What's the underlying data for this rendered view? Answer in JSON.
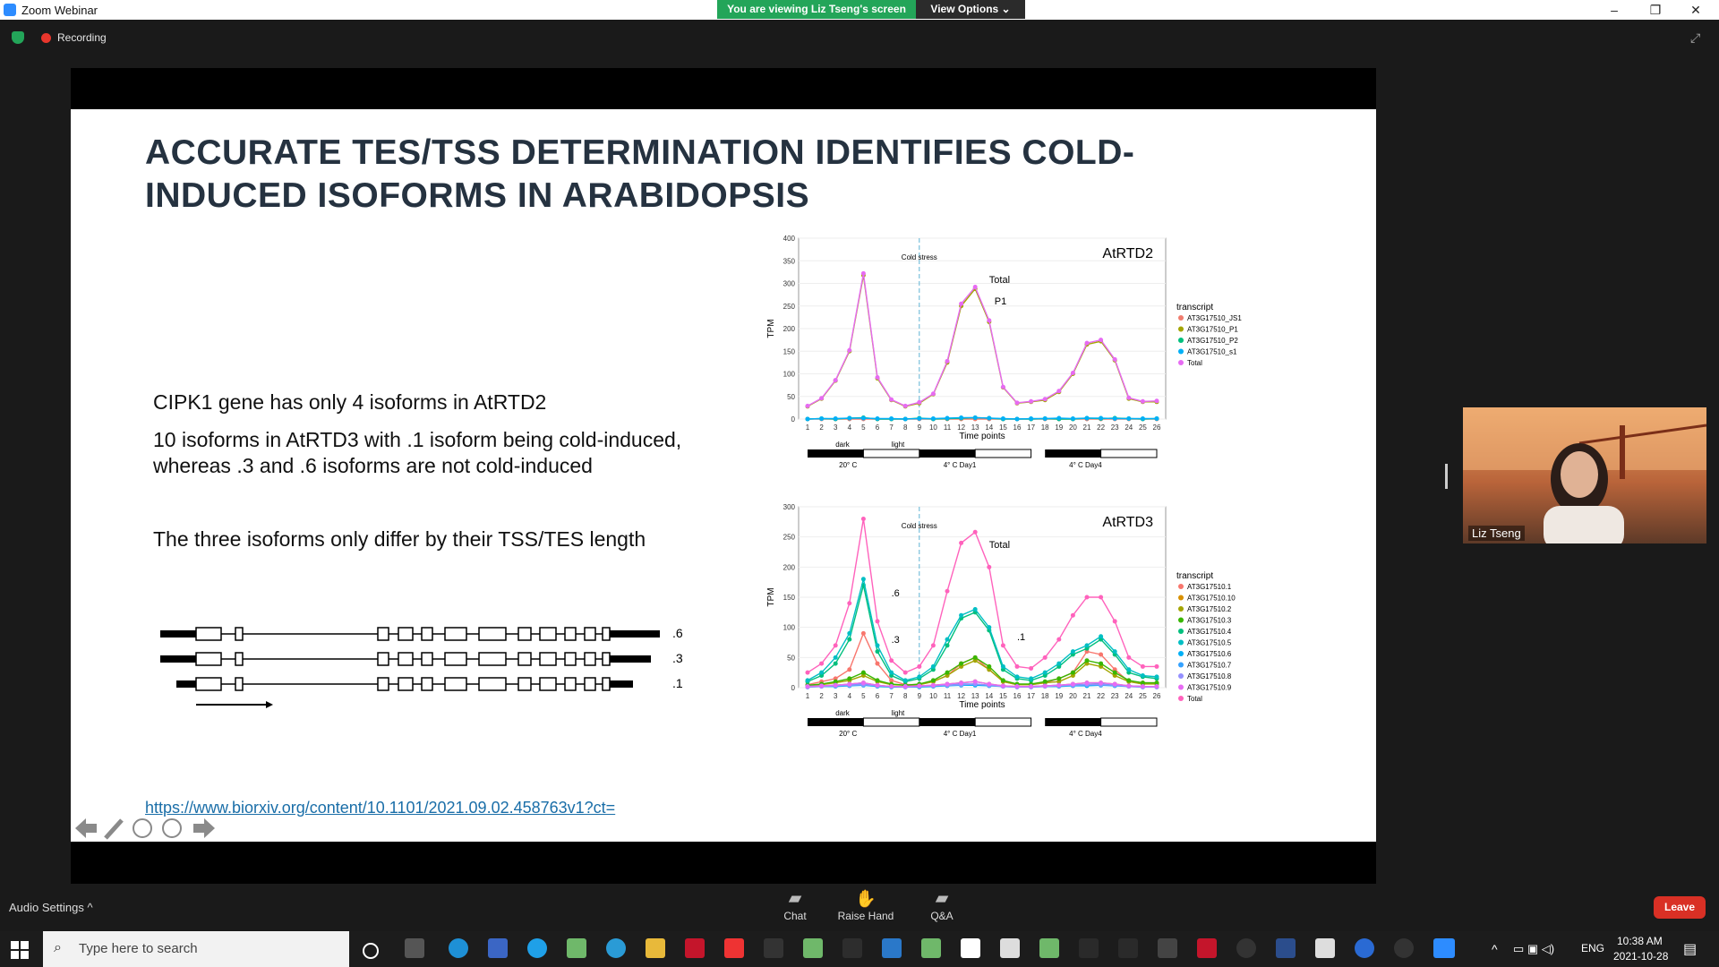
{
  "app": {
    "title": "Zoom Webinar",
    "viewing_banner": "You are viewing Liz Tseng's screen",
    "view_options": "View Options ⌄"
  },
  "window_controls": {
    "minimize": "–",
    "restore": "❐",
    "close": "✕"
  },
  "status": {
    "recording": "Recording"
  },
  "slide": {
    "title_line1": "ACCURATE TES/TSS DETERMINATION IDENTIFIES COLD-",
    "title_line2": "INDUCED ISOFORMS IN ARABIDOPSIS",
    "bullet1": "CIPK1 gene has only 4 isoforms in AtRTD2",
    "bullet2_line1": "10 isoforms in AtRTD3 with .1 isoform being cold-induced,",
    "bullet2_line2": "whereas .3 and .6 isoforms are not cold-induced",
    "bullet3": "The three isoforms only differ by their TSS/TES length",
    "isoform_labels": [
      ".6",
      ".3",
      ".1"
    ],
    "link": "https://www.biorxiv.org/content/10.1101/2021.09.02.458763v1?ct="
  },
  "chart_data": [
    {
      "type": "line",
      "title": "AtRTD2",
      "annotations": [
        "Cold stress",
        "Total",
        "P1"
      ],
      "xlabel": "Time points",
      "ylabel": "TPM",
      "x": [
        1,
        2,
        3,
        4,
        5,
        6,
        7,
        8,
        9,
        10,
        11,
        12,
        13,
        14,
        15,
        16,
        17,
        18,
        19,
        20,
        21,
        22,
        23,
        24,
        25,
        26
      ],
      "ylim": [
        0,
        400
      ],
      "yticks": [
        0,
        50,
        100,
        150,
        200,
        250,
        300,
        350,
        400
      ],
      "legend_title": "transcript",
      "legend_position": "right",
      "series": [
        {
          "name": "AT3G17510_JS1",
          "color": "#f07c6e",
          "values": [
            0,
            0,
            0,
            0,
            0,
            0,
            0,
            0,
            0,
            0,
            0,
            0,
            0,
            0,
            0,
            0,
            0,
            0,
            0,
            0,
            0,
            0,
            0,
            0,
            0,
            0
          ]
        },
        {
          "name": "AT3G17510_P1",
          "color": "#a3a500",
          "values": [
            28,
            45,
            85,
            150,
            318,
            90,
            42,
            28,
            35,
            55,
            125,
            250,
            288,
            215,
            70,
            35,
            38,
            42,
            60,
            100,
            165,
            172,
            130,
            45,
            38,
            38
          ]
        },
        {
          "name": "AT3G17510_P2",
          "color": "#00bf7d",
          "values": [
            0,
            1,
            0,
            2,
            3,
            0,
            0,
            0,
            2,
            0,
            1,
            2,
            3,
            2,
            0,
            0,
            0,
            1,
            0,
            0,
            2,
            1,
            2,
            1,
            0,
            1
          ]
        },
        {
          "name": "AT3G17510_s1",
          "color": "#00b0f6",
          "values": [
            0,
            1,
            1,
            2,
            2,
            1,
            1,
            0,
            1,
            1,
            2,
            3,
            3,
            2,
            1,
            0,
            1,
            1,
            2,
            1,
            2,
            2,
            1,
            1,
            1,
            1
          ]
        },
        {
          "name": "Total",
          "color": "#e76bf3",
          "values": [
            29,
            46,
            86,
            152,
            322,
            92,
            43,
            29,
            37,
            56,
            128,
            255,
            292,
            218,
            71,
            36,
            39,
            44,
            62,
            102,
            168,
            175,
            132,
            47,
            39,
            40
          ]
        }
      ],
      "bands": {
        "segments": [
          "dark",
          "light"
        ],
        "conditions": [
          "20° C",
          "4° C Day1",
          "4° C Day4"
        ]
      }
    },
    {
      "type": "line",
      "title": "AtRTD3",
      "annotations": [
        "Cold stress",
        "Total",
        ".6",
        ".3",
        ".1"
      ],
      "xlabel": "Time points",
      "ylabel": "TPM",
      "x": [
        1,
        2,
        3,
        4,
        5,
        6,
        7,
        8,
        9,
        10,
        11,
        12,
        13,
        14,
        15,
        16,
        17,
        18,
        19,
        20,
        21,
        22,
        23,
        24,
        25,
        26
      ],
      "ylim": [
        0,
        300
      ],
      "yticks": [
        0,
        50,
        100,
        150,
        200,
        250,
        300
      ],
      "legend_title": "transcript",
      "legend_position": "right",
      "series": [
        {
          "name": "AT3G17510.1",
          "color": "#f8766d",
          "values": [
            5,
            10,
            15,
            30,
            90,
            40,
            12,
            5,
            5,
            10,
            20,
            40,
            50,
            30,
            10,
            5,
            5,
            8,
            15,
            25,
            60,
            55,
            30,
            10,
            8,
            8
          ]
        },
        {
          "name": "AT3G17510.10",
          "color": "#d89000",
          "values": [
            2,
            3,
            4,
            6,
            8,
            4,
            2,
            2,
            3,
            4,
            6,
            8,
            10,
            6,
            3,
            2,
            2,
            3,
            4,
            6,
            8,
            8,
            6,
            3,
            2,
            2
          ]
        },
        {
          "name": "AT3G17510.2",
          "color": "#a3a500",
          "values": [
            3,
            5,
            8,
            12,
            20,
            10,
            5,
            4,
            5,
            10,
            20,
            35,
            45,
            30,
            10,
            5,
            5,
            8,
            10,
            20,
            40,
            35,
            20,
            10,
            6,
            6
          ]
        },
        {
          "name": "AT3G17510.3",
          "color": "#39b600",
          "values": [
            4,
            6,
            10,
            15,
            25,
            12,
            6,
            4,
            6,
            12,
            25,
            40,
            50,
            35,
            12,
            6,
            6,
            10,
            15,
            25,
            45,
            40,
            25,
            12,
            8,
            8
          ]
        },
        {
          "name": "AT3G17510.4",
          "color": "#00bf7d",
          "values": [
            10,
            20,
            40,
            80,
            170,
            60,
            20,
            10,
            15,
            30,
            70,
            115,
            125,
            95,
            30,
            15,
            12,
            20,
            35,
            55,
            65,
            80,
            55,
            25,
            18,
            15
          ]
        },
        {
          "name": "AT3G17510.5",
          "color": "#00bfc4",
          "values": [
            12,
            25,
            50,
            90,
            180,
            70,
            25,
            12,
            18,
            35,
            80,
            120,
            130,
            100,
            35,
            18,
            15,
            25,
            40,
            60,
            70,
            85,
            60,
            30,
            20,
            18
          ]
        },
        {
          "name": "AT3G17510.6",
          "color": "#00b0f6",
          "values": [
            1,
            2,
            2,
            3,
            4,
            2,
            1,
            1,
            1,
            2,
            3,
            4,
            4,
            3,
            2,
            1,
            1,
            2,
            2,
            3,
            3,
            4,
            3,
            2,
            1,
            1
          ]
        },
        {
          "name": "AT3G17510.7",
          "color": "#35a2ff",
          "values": [
            2,
            3,
            4,
            5,
            6,
            3,
            2,
            2,
            2,
            3,
            4,
            6,
            6,
            4,
            2,
            2,
            2,
            3,
            4,
            5,
            5,
            6,
            4,
            3,
            2,
            2
          ]
        },
        {
          "name": "AT3G17510.8",
          "color": "#9590ff",
          "values": [
            1,
            2,
            3,
            4,
            5,
            3,
            2,
            1,
            2,
            3,
            4,
            5,
            6,
            4,
            2,
            1,
            1,
            2,
            3,
            4,
            5,
            5,
            4,
            2,
            1,
            1
          ]
        },
        {
          "name": "AT3G17510.9",
          "color": "#e76bf3",
          "values": [
            2,
            3,
            4,
            6,
            8,
            4,
            2,
            2,
            3,
            4,
            6,
            8,
            10,
            6,
            3,
            2,
            2,
            3,
            4,
            6,
            8,
            8,
            6,
            3,
            2,
            2
          ]
        },
        {
          "name": "Total",
          "color": "#ff62bc",
          "values": [
            25,
            40,
            70,
            140,
            280,
            110,
            45,
            25,
            35,
            70,
            160,
            240,
            258,
            200,
            70,
            35,
            32,
            50,
            80,
            120,
            150,
            150,
            110,
            50,
            35,
            35
          ]
        }
      ],
      "bands": {
        "segments": [
          "dark",
          "light"
        ],
        "conditions": [
          "20° C",
          "4° C Day1",
          "4° C Day4"
        ]
      }
    }
  ],
  "presenter": {
    "name": "Liz Tseng"
  },
  "bottom": {
    "audio_settings": "Audio Settings ^",
    "chat": "Chat",
    "raise_hand": "Raise Hand",
    "qa": "Q&A",
    "leave": "Leave"
  },
  "taskbar": {
    "search_placeholder": "Type here to search",
    "time": "10:38 AM",
    "date": "2021-10-28",
    "lang": "ENG"
  }
}
